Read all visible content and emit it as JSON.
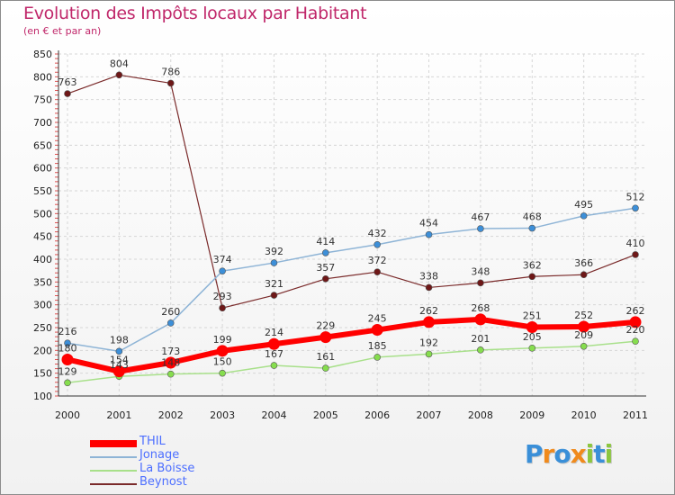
{
  "title": "Evolution des Impôts locaux par Habitant",
  "subtitle": "(en € et par an)",
  "chart_data": {
    "type": "line",
    "title": "Evolution des Impôts locaux par Habitant",
    "subtitle": "(en € et par an)",
    "xlabel": "",
    "ylabel": "",
    "categories": [
      "2000",
      "2001",
      "2002",
      "2003",
      "2004",
      "2005",
      "2006",
      "2007",
      "2008",
      "2009",
      "2010",
      "2011"
    ],
    "ylim": [
      100,
      850
    ],
    "yticks": [
      100,
      150,
      200,
      250,
      300,
      350,
      400,
      450,
      500,
      550,
      600,
      650,
      700,
      750,
      800,
      850
    ],
    "grid": true,
    "legend_position": "bottom-left",
    "series": [
      {
        "name": "THIL",
        "color": "#ff0000",
        "marker": "#ff0000",
        "width": 6,
        "values": [
          180,
          154,
          173,
          199,
          214,
          229,
          245,
          262,
          268,
          251,
          252,
          262
        ]
      },
      {
        "name": "Jonage",
        "color": "#8eb4d6",
        "marker": "#3d8fd8",
        "width": 1.5,
        "values": [
          216,
          198,
          260,
          374,
          392,
          414,
          432,
          454,
          467,
          468,
          495,
          512
        ]
      },
      {
        "name": "La Boisse",
        "color": "#a8e08a",
        "marker": "#86dd4e",
        "width": 1.5,
        "values": [
          129,
          143,
          148,
          150,
          167,
          161,
          185,
          192,
          201,
          205,
          209,
          220
        ]
      },
      {
        "name": "Beynost",
        "color": "#7a2a2a",
        "marker": "#6e1717",
        "width": 1.2,
        "values": [
          763,
          804,
          786,
          293,
          321,
          357,
          372,
          338,
          348,
          362,
          366,
          410
        ]
      }
    ]
  },
  "legend": [
    {
      "name": "THIL",
      "color": "#ff0000"
    },
    {
      "name": "Jonage",
      "color": "#8eb4d6"
    },
    {
      "name": "La Boisse",
      "color": "#a8e08a"
    },
    {
      "name": "Beynost",
      "color": "#7a2a2a"
    }
  ],
  "logo": {
    "letters": [
      {
        "ch": "P",
        "color": "#3a8fd8"
      },
      {
        "ch": "r",
        "color": "#f08a1c"
      },
      {
        "ch": "o",
        "color": "#3a8fd8"
      },
      {
        "ch": "x",
        "color": "#f08a1c"
      },
      {
        "ch": "i",
        "color": "#8cc63f"
      },
      {
        "ch": "t",
        "color": "#3a8fd8"
      },
      {
        "ch": "i",
        "color": "#8cc63f"
      }
    ]
  }
}
